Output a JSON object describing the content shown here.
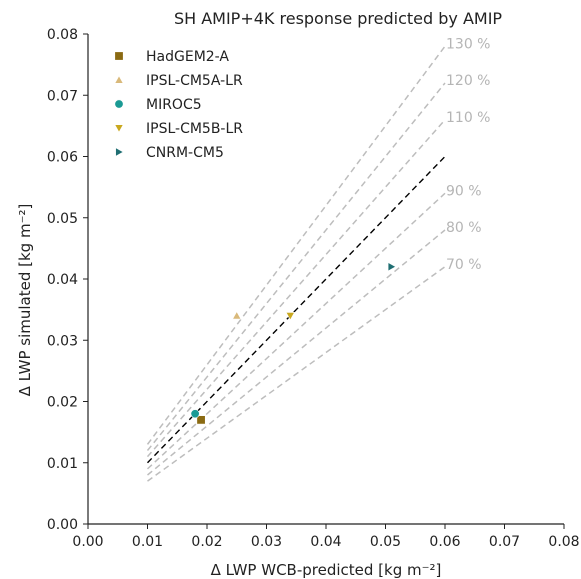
{
  "chart_data": {
    "type": "scatter",
    "title": "SH AMIP+4K response predicted by AMIP",
    "xlabel": "Δ LWP WCB-predicted [kg m⁻²]",
    "ylabel": "Δ LWP simulated [kg m⁻²]",
    "xlim": [
      0.0,
      0.08
    ],
    "ylim": [
      0.0,
      0.08
    ],
    "x_ticks": [
      "0.00",
      "0.01",
      "0.02",
      "0.03",
      "0.04",
      "0.05",
      "0.06",
      "0.07",
      "0.08"
    ],
    "y_ticks": [
      "0.00",
      "0.01",
      "0.02",
      "0.03",
      "0.04",
      "0.05",
      "0.06",
      "0.07",
      "0.08"
    ],
    "grid": false,
    "legend_position": "top-left",
    "series": [
      {
        "name": "HadGEM2-A",
        "marker": "square",
        "color": "#8a6a12",
        "points": [
          [
            0.019,
            0.017
          ]
        ]
      },
      {
        "name": "IPSL-CM5A-LR",
        "marker": "triangle-up",
        "color": "#d9b97a",
        "points": [
          [
            0.025,
            0.034
          ]
        ]
      },
      {
        "name": "MIROC5",
        "marker": "circle",
        "color": "#1a9a94",
        "points": [
          [
            0.018,
            0.018
          ]
        ]
      },
      {
        "name": "IPSL-CM5B-LR",
        "marker": "triangle-down",
        "color": "#c9a81e",
        "points": [
          [
            0.034,
            0.034
          ]
        ]
      },
      {
        "name": "CNRM-CM5",
        "marker": "triangle-right",
        "color": "#1f6e72",
        "points": [
          [
            0.051,
            0.042
          ]
        ]
      }
    ],
    "reference_lines": [
      {
        "label": "130 %",
        "slope": 1.3,
        "x_range": [
          0.01,
          0.06
        ],
        "style": "dashed",
        "color": "#bdbdbd"
      },
      {
        "label": "120 %",
        "slope": 1.2,
        "x_range": [
          0.01,
          0.06
        ],
        "style": "dashed",
        "color": "#bdbdbd"
      },
      {
        "label": "110 %",
        "slope": 1.1,
        "x_range": [
          0.01,
          0.06
        ],
        "style": "dashed",
        "color": "#bdbdbd"
      },
      {
        "label": "",
        "slope": 1.0,
        "x_range": [
          0.01,
          0.06
        ],
        "style": "dashed",
        "color": "#000000"
      },
      {
        "label": "90 %",
        "slope": 0.9,
        "x_range": [
          0.01,
          0.06
        ],
        "style": "dashed",
        "color": "#bdbdbd"
      },
      {
        "label": "80 %",
        "slope": 0.8,
        "x_range": [
          0.01,
          0.06
        ],
        "style": "dashed",
        "color": "#bdbdbd"
      },
      {
        "label": "70 %",
        "slope": 0.7,
        "x_range": [
          0.01,
          0.06
        ],
        "style": "dashed",
        "color": "#bdbdbd"
      }
    ]
  }
}
